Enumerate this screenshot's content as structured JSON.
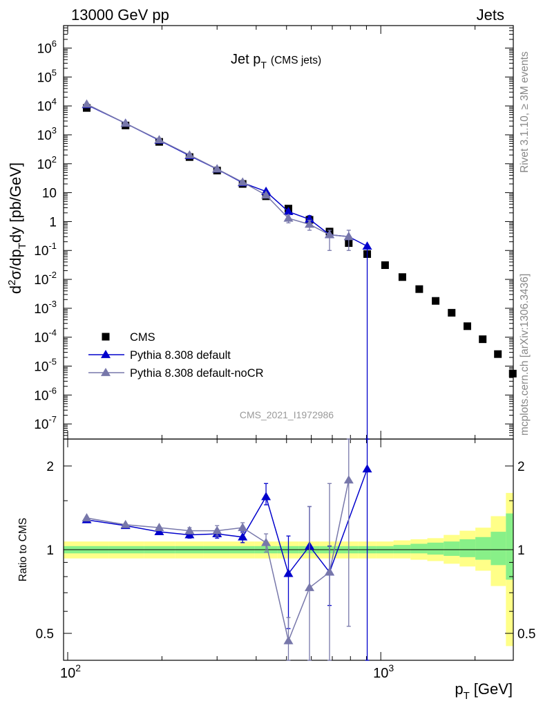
{
  "header": {
    "left": "13000 GeV pp",
    "right": "Jets"
  },
  "side_labels": {
    "rivet": "Rivet 3.1.10, ≥ 3M events",
    "mcplots": "mcplots.cern.ch [arXiv:1306.3436]"
  },
  "watermark": "CMS_2021_I1972986",
  "chart_data": [
    {
      "type": "line",
      "panel": "main",
      "title": "Jet p_T (CMS jets)",
      "title_main": "Jet p",
      "title_sub": "T",
      "title_note": "(CMS jets)",
      "ylabel": "d²σ/dp_T dy [pb/GeV]",
      "xscale": "log",
      "yscale": "log",
      "xlim": [
        97,
        2650
      ],
      "ylim": [
        3e-08,
        6000000.0
      ],
      "legend_position": "bottom-left",
      "legend": [
        "CMS",
        "Pythia 8.308 default",
        "Pythia 8.308 default-noCR"
      ],
      "series": [
        {
          "name": "CMS",
          "style": "marker",
          "marker": "square",
          "color": "#000000",
          "x": [
            115,
            153,
            196,
            245,
            300,
            362,
            430,
            507,
            592,
            686,
            790,
            905,
            1032,
            1172,
            1327,
            1497,
            1684,
            1890,
            2116,
            2366,
            2640
          ],
          "y": [
            8500,
            2100,
            570,
            170,
            58,
            20,
            7.5,
            2.8,
            1.15,
            0.45,
            0.18,
            0.075,
            0.031,
            0.012,
            0.0046,
            0.0018,
            0.0007,
            0.00024,
            8.5e-05,
            2.6e-05,
            5.5e-06
          ]
        },
        {
          "name": "Pythia 8.308 default",
          "style": "line",
          "marker": "triangle",
          "color": "#0000cc",
          "x": [
            115,
            153,
            196,
            245,
            300,
            362,
            430,
            507,
            592,
            686,
            790,
            905
          ],
          "y": [
            11000,
            2500,
            650,
            190,
            65,
            22,
            11,
            2.2,
            1.2,
            0.35,
            0.3,
            0.14
          ],
          "yerr_low": [
            0,
            0,
            0,
            0,
            0,
            0,
            0,
            0,
            0.3,
            0,
            0,
            0.14
          ],
          "yerr_high": [
            0,
            0,
            0,
            0,
            0,
            0,
            0,
            0,
            0.4,
            0,
            0,
            0
          ]
        },
        {
          "name": "Pythia 8.308 default-noCR",
          "style": "line",
          "marker": "triangle",
          "color": "#7777aa",
          "x": [
            115,
            153,
            196,
            245,
            300,
            362,
            430,
            507,
            592,
            686,
            790
          ],
          "y": [
            11500,
            2500,
            670,
            200,
            66,
            23,
            8.2,
            1.3,
            0.8,
            0.35,
            0.3
          ],
          "yerr_low": [
            0,
            0,
            0,
            0,
            0,
            0,
            0,
            0.4,
            0.3,
            0.25,
            0.2
          ],
          "yerr_high": [
            0,
            0,
            0,
            0,
            0,
            0,
            0,
            0.4,
            0.3,
            0.15,
            0.2
          ]
        }
      ]
    },
    {
      "type": "line",
      "panel": "ratio",
      "title": "",
      "xlabel": "p_T [GeV]",
      "xlabel_main": "p",
      "xlabel_sub": "T",
      "xlabel_unit": "[GeV]",
      "ylabel": "Ratio to CMS",
      "xscale": "log",
      "yscale": "log",
      "xlim": [
        97,
        2650
      ],
      "ylim": [
        0.4,
        2.5
      ],
      "reference": 1,
      "band_edges": [
        97,
        135,
        175,
        220,
        272,
        330,
        395,
        468,
        548,
        638,
        737,
        846,
        966,
        1098,
        1245,
        1408,
        1588,
        1786,
        2005,
        2246,
        2510,
        2650
      ],
      "band_green_low": [
        0.97,
        0.97,
        0.97,
        0.97,
        0.97,
        0.97,
        0.97,
        0.97,
        0.97,
        0.97,
        0.97,
        0.97,
        0.97,
        0.97,
        0.97,
        0.96,
        0.95,
        0.94,
        0.92,
        0.88,
        0.78
      ],
      "band_green_high": [
        1.03,
        1.03,
        1.03,
        1.03,
        1.03,
        1.03,
        1.03,
        1.03,
        1.03,
        1.03,
        1.03,
        1.03,
        1.03,
        1.04,
        1.05,
        1.06,
        1.07,
        1.09,
        1.11,
        1.16,
        1.35
      ],
      "band_yellow_low": [
        0.93,
        0.93,
        0.93,
        0.93,
        0.93,
        0.93,
        0.93,
        0.93,
        0.93,
        0.93,
        0.93,
        0.93,
        0.93,
        0.93,
        0.92,
        0.91,
        0.89,
        0.87,
        0.84,
        0.74,
        0.45
      ],
      "band_yellow_high": [
        1.07,
        1.07,
        1.07,
        1.07,
        1.07,
        1.07,
        1.07,
        1.07,
        1.07,
        1.07,
        1.07,
        1.07,
        1.07,
        1.08,
        1.09,
        1.1,
        1.13,
        1.17,
        1.2,
        1.32,
        1.6
      ],
      "series": [
        {
          "name": "Pythia 8.308 default",
          "color": "#0000cc",
          "x": [
            115,
            153,
            196,
            245,
            300,
            362,
            430,
            507,
            592,
            686,
            905
          ],
          "y": [
            1.28,
            1.22,
            1.16,
            1.13,
            1.14,
            1.11,
            1.55,
            0.82,
            1.03,
            0.83,
            1.95
          ],
          "yerr_low": [
            0,
            0,
            0,
            0.03,
            0.04,
            0.05,
            0.1,
            0.3,
            0.3,
            0.2,
            1.6
          ],
          "yerr_high": [
            0,
            0,
            0,
            0.03,
            0.04,
            0.05,
            0.18,
            0.3,
            0.4,
            0.2,
            0.6
          ]
        },
        {
          "name": "Pythia 8.308 default-noCR",
          "color": "#7777aa",
          "x": [
            115,
            153,
            196,
            245,
            300,
            362,
            430,
            507,
            592,
            686,
            790
          ],
          "y": [
            1.3,
            1.23,
            1.2,
            1.17,
            1.17,
            1.2,
            1.06,
            0.47,
            0.73,
            0.83,
            1.78
          ],
          "yerr_low": [
            0,
            0,
            0,
            0.03,
            0.05,
            0.05,
            0.08,
            0.1,
            0.35,
            0.5,
            1.25
          ],
          "yerr_high": [
            0,
            0,
            0,
            0.03,
            0.05,
            0.05,
            0.08,
            0.1,
            0.7,
            0.9,
            0.8
          ]
        }
      ]
    }
  ]
}
